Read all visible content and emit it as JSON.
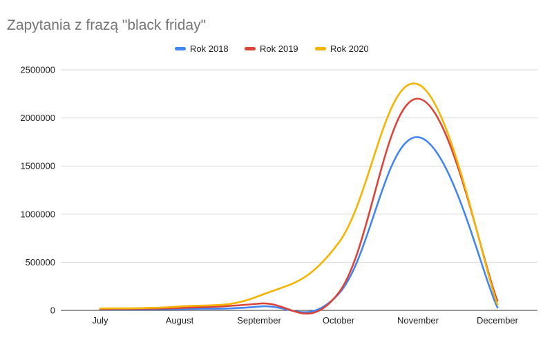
{
  "chart_data": {
    "type": "line",
    "title": "Zapytania z frazą \"black friday\"",
    "xlabel": "",
    "ylabel": "",
    "categories": [
      "July",
      "August",
      "September",
      "October",
      "November",
      "December"
    ],
    "ylim": [
      0,
      2500000
    ],
    "yticks": [
      0,
      500000,
      1000000,
      1500000,
      2000000,
      2500000
    ],
    "ytick_labels": [
      "0",
      "500000",
      "1000000",
      "1500000",
      "2000000",
      "2500000"
    ],
    "grid": true,
    "legend": "top",
    "smooth": true,
    "series": [
      {
        "name": "Rok 2018",
        "color": "#4285f4",
        "values": [
          10000,
          15000,
          40000,
          170000,
          1800000,
          30000
        ]
      },
      {
        "name": "Rok 2019",
        "color": "#db4437",
        "values": [
          15000,
          25000,
          70000,
          180000,
          2200000,
          100000
        ]
      },
      {
        "name": "Rok 2020",
        "color": "#f4b400",
        "values": [
          20000,
          40000,
          150000,
          700000,
          2350000,
          60000
        ]
      }
    ]
  }
}
